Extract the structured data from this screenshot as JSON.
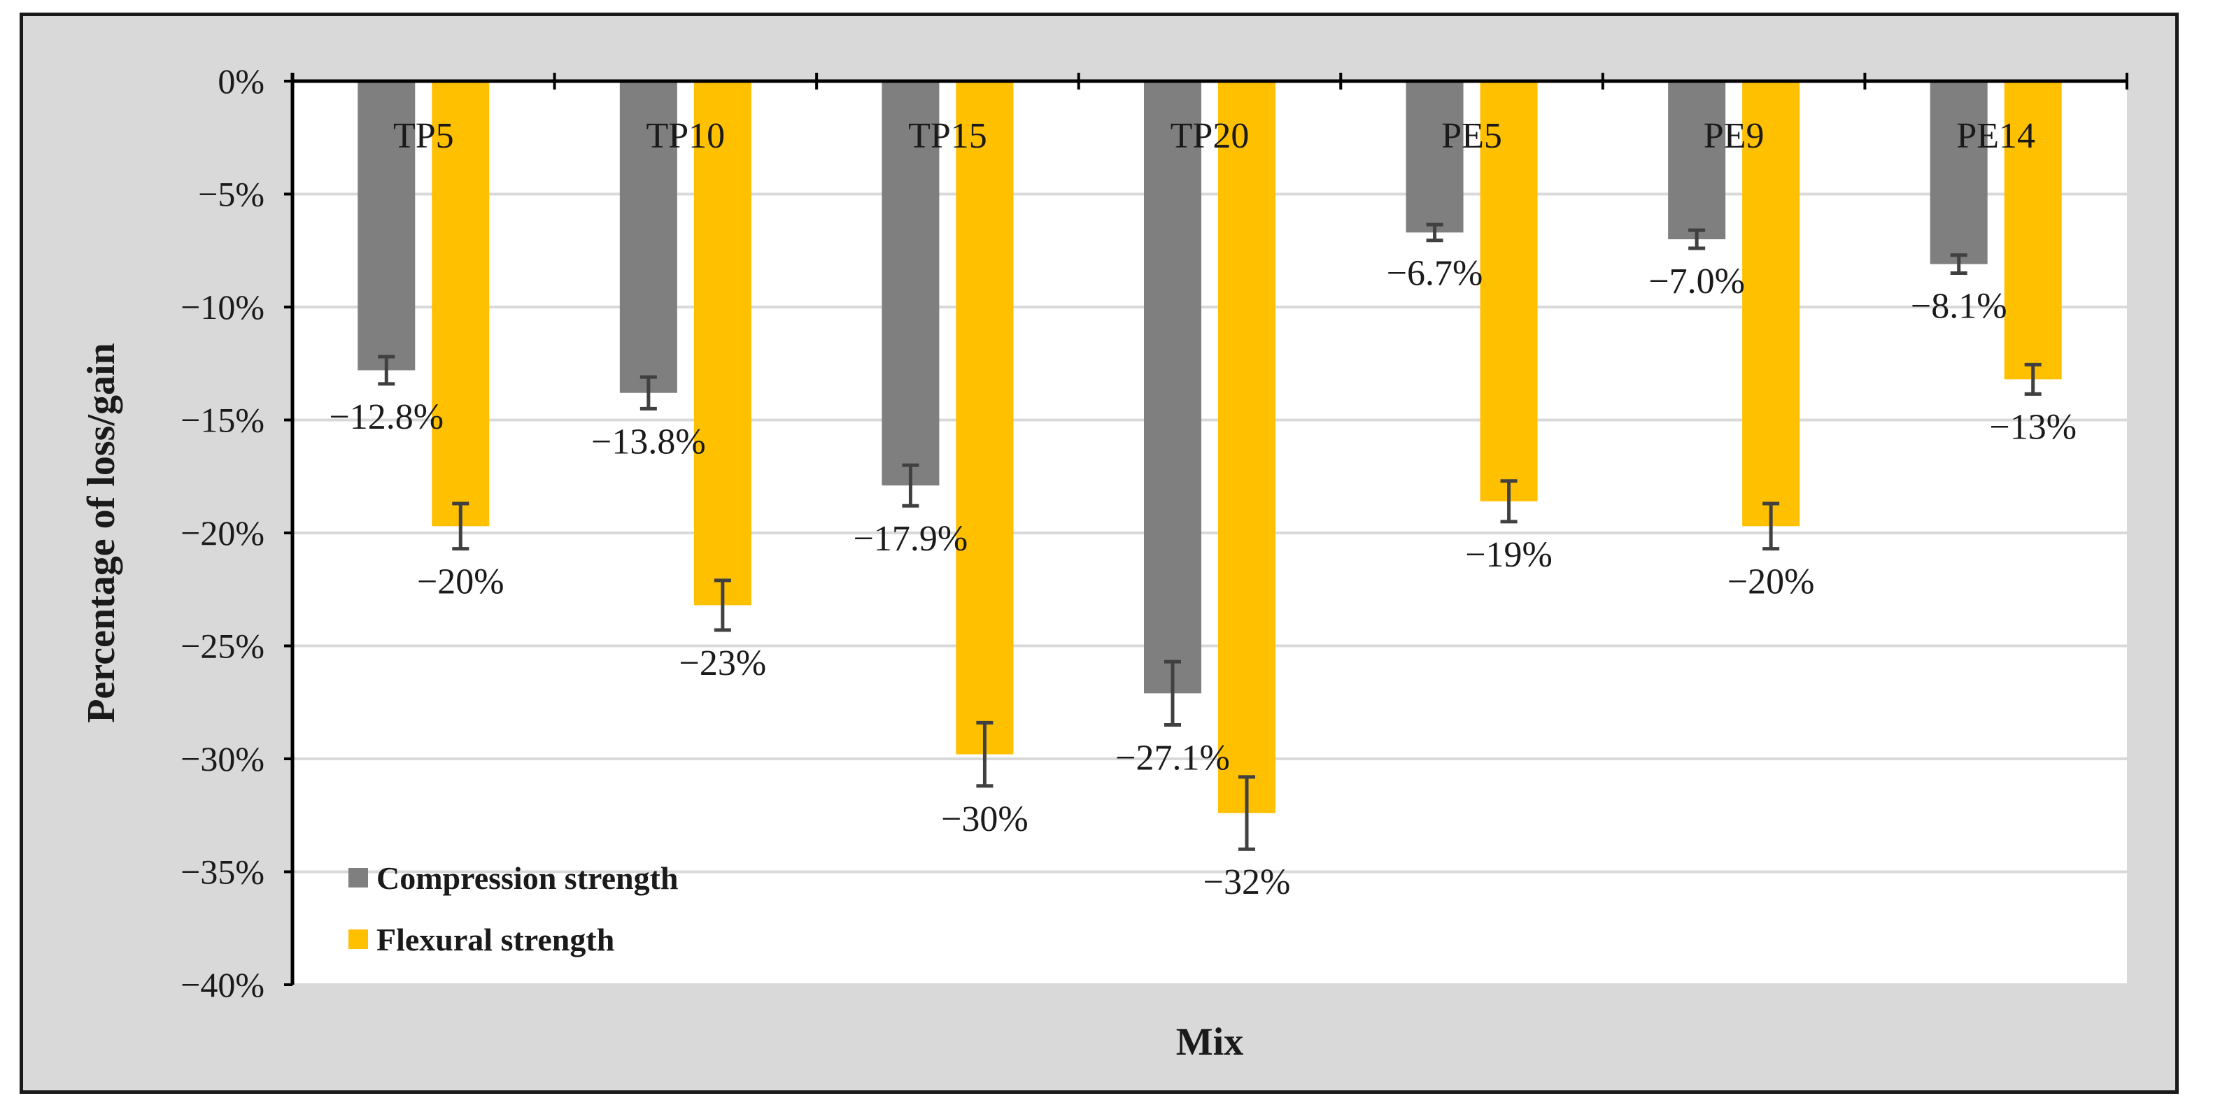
{
  "chart_data": {
    "type": "bar",
    "title": "",
    "xlabel": "Mix",
    "ylabel": "Percentage of loss/gain",
    "categories": [
      "TP5",
      "TP10",
      "TP15",
      "TP20",
      "PE5",
      "PE9",
      "PE14"
    ],
    "ylim": [
      -40,
      0
    ],
    "yticks": [
      0,
      -5,
      -10,
      -15,
      -20,
      -25,
      -30,
      -35,
      -40
    ],
    "ytick_labels": [
      "0%",
      "−5%",
      "−10%",
      "−15%",
      "−20%",
      "−25%",
      "−30%",
      "−35%",
      "−40%"
    ],
    "grid": true,
    "legend_position": "bottom-left",
    "series": [
      {
        "name": "Compression strength",
        "color": "#7f7f7f",
        "values": [
          -12.8,
          -13.8,
          -17.9,
          -27.1,
          -6.7,
          -7.0,
          -8.1
        ],
        "errors": [
          0.6,
          0.7,
          0.9,
          1.4,
          0.35,
          0.4,
          0.4
        ],
        "labels": [
          "−12.8%",
          "−13.8%",
          "−17.9%",
          "−27.1%",
          "−6.7%",
          "−7.0%",
          "−8.1%"
        ]
      },
      {
        "name": "Flexural strength",
        "color": "#ffc000",
        "values": [
          -19.7,
          -23.2,
          -29.8,
          -32.4,
          -18.6,
          -19.7,
          -13.2
        ],
        "errors": [
          1.0,
          1.1,
          1.4,
          1.6,
          0.9,
          1.0,
          0.65
        ],
        "labels": [
          "−20%",
          "−23%",
          "−30%",
          "−32%",
          "−19%",
          "−20%",
          "−13%"
        ]
      }
    ]
  }
}
